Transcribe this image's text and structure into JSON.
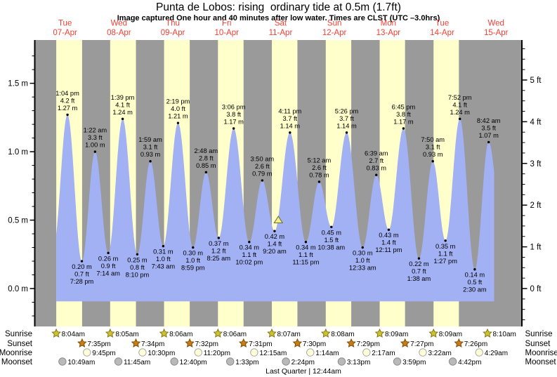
{
  "title": "Punta de Lobos: rising  ordinary tide at 0.5m (1.7ft)",
  "subtitle": "Image captured One hour and 40 minutes after low water. Times are CLST (UTC –3.0hrs)",
  "footer": "Last Quarter | 12:44am",
  "colors": {
    "night_band": "#9a9a9a",
    "day_band": "#ffffcc",
    "tide_fill": "#a2b0f4",
    "day_label": "#ee4135",
    "axis": "#000000",
    "annotation": "#000000",
    "marker_fill": "#f0ef8e",
    "marker_stroke": "#6e6e2d",
    "sunrise_star": "#cfc22f",
    "sunrise_star_stroke": "#81761a",
    "sunset_star": "#c87c14",
    "sunset_star_stroke": "#7c4c08",
    "moonrise_fill": "#ffffd9",
    "moonrise_stroke": "#a8a8a8",
    "moonset_fill": "#b9b9b9",
    "moonset_stroke": "#8b8b8b"
  },
  "chart_data": {
    "type": "area",
    "days": [
      {
        "name": "Tue",
        "date": "07-Apr"
      },
      {
        "name": "Wed",
        "date": "08-Apr"
      },
      {
        "name": "Thu",
        "date": "09-Apr"
      },
      {
        "name": "Fri",
        "date": "10-Apr"
      },
      {
        "name": "Sat",
        "date": "11-Apr"
      },
      {
        "name": "Sun",
        "date": "12-Apr"
      },
      {
        "name": "Mon",
        "date": "13-Apr"
      },
      {
        "name": "Tue",
        "date": "14-Apr"
      },
      {
        "name": "Wed",
        "date": "15-Apr"
      }
    ],
    "y_axis_left": {
      "unit": "m",
      "tick_labels": [
        "0.0 m",
        "0.5 m",
        "1.0 m",
        "1.5 m"
      ],
      "tick_values": [
        0,
        0.5,
        1,
        1.5
      ],
      "minor_step": 0.1
    },
    "y_axis_right": {
      "unit": "ft",
      "tick_labels": [
        "0 ft",
        "1 ft",
        "2 ft",
        "3 ft",
        "4 ft",
        "5 ft"
      ],
      "tick_values": [
        0,
        1,
        2,
        3,
        4,
        5
      ],
      "minor_step": 0.25
    },
    "tide_events": [
      {
        "day": 0,
        "time24": "13:04",
        "time": "1:04 pm",
        "type": "high",
        "height_ft": "4.2 ft",
        "height_m": "1.27 m"
      },
      {
        "day": 0,
        "time24": "19:28",
        "time": "7:28 pm",
        "type": "low",
        "height_ft": "0.7 ft",
        "height_m": "0.20 m"
      },
      {
        "day": 1,
        "time24": "01:22",
        "time": "1:22 am",
        "type": "high",
        "height_ft": "3.3 ft",
        "height_m": "1.00 m"
      },
      {
        "day": 1,
        "time24": "07:14",
        "time": "7:14 am",
        "type": "low",
        "height_ft": "0.9 ft",
        "height_m": "0.26 m"
      },
      {
        "day": 1,
        "time24": "13:39",
        "time": "1:39 pm",
        "type": "high",
        "height_ft": "4.1 ft",
        "height_m": "1.24 m"
      },
      {
        "day": 1,
        "time24": "20:10",
        "time": "8:10 pm",
        "type": "low",
        "height_ft": "0.8 ft",
        "height_m": "0.25 m"
      },
      {
        "day": 2,
        "time24": "01:59",
        "time": "1:59 am",
        "type": "high",
        "height_ft": "3.1 ft",
        "height_m": "0.93 m"
      },
      {
        "day": 2,
        "time24": "07:43",
        "time": "7:43 am",
        "type": "low",
        "height_ft": "1.0 ft",
        "height_m": "0.31 m"
      },
      {
        "day": 2,
        "time24": "14:19",
        "time": "2:19 pm",
        "type": "high",
        "height_ft": "4.0 ft",
        "height_m": "1.21 m"
      },
      {
        "day": 2,
        "time24": "20:59",
        "time": "8:59 pm",
        "type": "low",
        "height_ft": "1.0 ft",
        "height_m": "0.30 m"
      },
      {
        "day": 3,
        "time24": "02:48",
        "time": "2:48 am",
        "type": "high",
        "height_ft": "2.8 ft",
        "height_m": "0.85 m"
      },
      {
        "day": 3,
        "time24": "08:25",
        "time": "8:25 am",
        "type": "low",
        "height_ft": "1.2 ft",
        "height_m": "0.37 m"
      },
      {
        "day": 3,
        "time24": "15:06",
        "time": "3:06 pm",
        "type": "high",
        "height_ft": "3.8 ft",
        "height_m": "1.17 m"
      },
      {
        "day": 3,
        "time24": "22:02",
        "time": "10:02 pm",
        "type": "low",
        "height_ft": "1.1 ft",
        "height_m": "0.34 m"
      },
      {
        "day": 4,
        "time24": "03:50",
        "time": "3:50 am",
        "type": "high",
        "height_ft": "2.6 ft",
        "height_m": "0.79 m"
      },
      {
        "day": 4,
        "time24": "09:20",
        "time": "9:20 am",
        "type": "low",
        "height_ft": "1.4 ft",
        "height_m": "0.42 m"
      },
      {
        "day": 4,
        "time24": "16:11",
        "time": "4:11 pm",
        "type": "high",
        "height_ft": "3.7 ft",
        "height_m": "1.14 m"
      },
      {
        "day": 4,
        "time24": "23:15",
        "time": "11:15 pm",
        "type": "low",
        "height_ft": "1.1 ft",
        "height_m": "0.34 m"
      },
      {
        "day": 5,
        "time24": "05:12",
        "time": "5:12 am",
        "type": "high",
        "height_ft": "2.6 ft",
        "height_m": "0.78 m"
      },
      {
        "day": 5,
        "time24": "10:38",
        "time": "10:38 am",
        "type": "low",
        "height_ft": "1.5 ft",
        "height_m": "0.45 m"
      },
      {
        "day": 5,
        "time24": "17:26",
        "time": "5:26 pm",
        "type": "high",
        "height_ft": "3.7 ft",
        "height_m": "1.14 m"
      },
      {
        "day": 6,
        "time24": "00:33",
        "time": "12:33 am",
        "type": "low",
        "height_ft": "1.0 ft",
        "height_m": "0.30 m"
      },
      {
        "day": 6,
        "time24": "06:39",
        "time": "6:39 am",
        "type": "high",
        "height_ft": "2.7 ft",
        "height_m": "0.83 m"
      },
      {
        "day": 6,
        "time24": "12:11",
        "time": "12:11 pm",
        "type": "low",
        "height_ft": "1.4 ft",
        "height_m": "0.43 m"
      },
      {
        "day": 6,
        "time24": "18:45",
        "time": "6:45 pm",
        "type": "high",
        "height_ft": "3.8 ft",
        "height_m": "1.17 m"
      },
      {
        "day": 7,
        "time24": "01:38",
        "time": "1:38 am",
        "type": "low",
        "height_ft": "0.7 ft",
        "height_m": "0.22 m"
      },
      {
        "day": 7,
        "time24": "07:50",
        "time": "7:50 am",
        "type": "high",
        "height_ft": "3.1 ft",
        "height_m": "0.93 m"
      },
      {
        "day": 7,
        "time24": "13:27",
        "time": "1:27 pm",
        "type": "low",
        "height_ft": "1.1 ft",
        "height_m": "0.35 m"
      },
      {
        "day": 7,
        "time24": "19:52",
        "time": "7:52 pm",
        "type": "high",
        "height_ft": "4.1 ft",
        "height_m": "1.24 m"
      },
      {
        "day": 8,
        "time24": "02:30",
        "time": "2:30 am",
        "type": "low",
        "height_ft": "0.5 ft",
        "height_m": "0.14 m"
      },
      {
        "day": 8,
        "time24": "08:42",
        "time": "8:42 am",
        "type": "high",
        "height_ft": "3.5 ft",
        "height_m": "1.07 m"
      }
    ],
    "current_marker": {
      "day": 4,
      "time24": "11:00",
      "height_m": 0.5
    },
    "astro_rows": [
      {
        "id": "sunrise",
        "label": "Sunrise",
        "icon": "sunrise-star-icon",
        "entries": [
          {
            "day": 0,
            "time24": "08:04",
            "label": "8:04am"
          },
          {
            "day": 1,
            "time24": "08:05",
            "label": "8:05am"
          },
          {
            "day": 2,
            "time24": "08:06",
            "label": "8:06am"
          },
          {
            "day": 3,
            "time24": "08:06",
            "label": "8:06am"
          },
          {
            "day": 4,
            "time24": "08:07",
            "label": "8:07am"
          },
          {
            "day": 5,
            "time24": "08:08",
            "label": "8:08am"
          },
          {
            "day": 6,
            "time24": "08:09",
            "label": "8:09am"
          },
          {
            "day": 7,
            "time24": "08:09",
            "label": "8:09am"
          },
          {
            "day": 8,
            "time24": "08:10",
            "label": "8:10am"
          }
        ]
      },
      {
        "id": "sunset",
        "label": "Sunset",
        "icon": "sunset-star-icon",
        "entries": [
          {
            "day": 0,
            "time24": "19:35",
            "label": "7:35pm"
          },
          {
            "day": 1,
            "time24": "19:34",
            "label": "7:34pm"
          },
          {
            "day": 2,
            "time24": "19:32",
            "label": "7:32pm"
          },
          {
            "day": 3,
            "time24": "19:31",
            "label": "7:31pm"
          },
          {
            "day": 4,
            "time24": "19:30",
            "label": "7:30pm"
          },
          {
            "day": 5,
            "time24": "19:29",
            "label": "7:29pm"
          },
          {
            "day": 6,
            "time24": "19:27",
            "label": "7:27pm"
          },
          {
            "day": 7,
            "time24": "19:26",
            "label": "7:26pm"
          }
        ]
      },
      {
        "id": "moonrise",
        "label": "Moonrise",
        "icon": "moonrise-moon-icon",
        "entries": [
          {
            "day": 0,
            "time24": "21:45",
            "label": "9:45pm"
          },
          {
            "day": 1,
            "time24": "22:30",
            "label": "10:30pm"
          },
          {
            "day": 2,
            "time24": "23:20",
            "label": "11:20pm"
          },
          {
            "day": 4,
            "time24": "00:15",
            "label": "12:15am"
          },
          {
            "day": 5,
            "time24": "01:14",
            "label": "1:14am"
          },
          {
            "day": 6,
            "time24": "02:17",
            "label": "2:17am"
          },
          {
            "day": 7,
            "time24": "03:22",
            "label": "3:22am"
          },
          {
            "day": 8,
            "time24": "04:29",
            "label": "4:29am"
          }
        ]
      },
      {
        "id": "moonset",
        "label": "Moonset",
        "icon": "moonset-moon-icon",
        "entries": [
          {
            "day": 0,
            "time24": "10:49",
            "label": "10:49am"
          },
          {
            "day": 1,
            "time24": "11:45",
            "label": "11:45am"
          },
          {
            "day": 2,
            "time24": "12:40",
            "label": "12:40pm"
          },
          {
            "day": 3,
            "time24": "13:33",
            "label": "1:33pm"
          },
          {
            "day": 4,
            "time24": "14:24",
            "label": "2:24pm"
          },
          {
            "day": 5,
            "time24": "15:13",
            "label": "3:13pm"
          },
          {
            "day": 6,
            "time24": "15:59",
            "label": "3:59pm"
          },
          {
            "day": 7,
            "time24": "16:42",
            "label": "4:42pm"
          }
        ]
      }
    ]
  }
}
